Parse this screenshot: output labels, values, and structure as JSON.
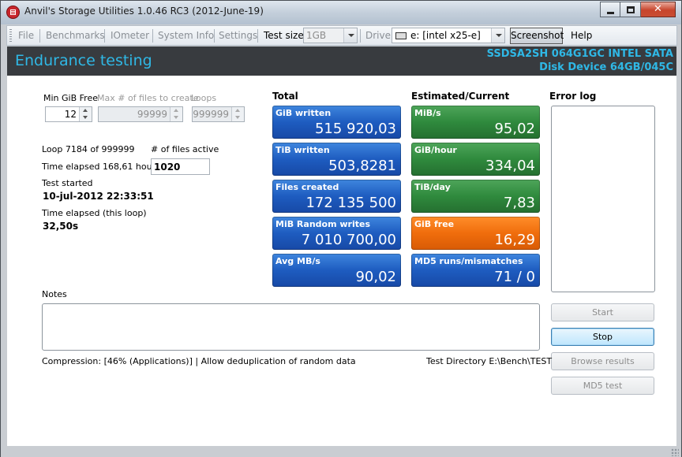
{
  "window": {
    "title": "Anvil's Storage Utilities 1.0.46 RC3 (2012-June-19)",
    "close_glyph": "✕"
  },
  "toolbar": {
    "file": "File",
    "benchmarks": "Benchmarks",
    "iometer": "IOmeter",
    "system_info": "System Info",
    "settings": "Settings",
    "test_size_label": "Test size",
    "test_size_value": "1GB",
    "drive_label": "Drive",
    "drive_value": "e: [intel x25-e]",
    "screenshot": "Screenshot",
    "help": "Help"
  },
  "header": {
    "title": "Endurance testing",
    "device_line1": "SSDSA2SH 064G1GC INTEL SATA",
    "device_line2": "Disk Device 64GB/045C"
  },
  "settings": {
    "min_gib_free_label": "Min GiB Free",
    "min_gib_free_value": "12",
    "max_files_label": "Max # of files to create",
    "max_files_value": "99999",
    "loops_label": "Loops",
    "loops_value": "999999"
  },
  "progress": {
    "loop_text": "Loop 7184 of 999999",
    "files_active_label": "# of files active",
    "files_active_value": "1020",
    "time_elapsed_text": "Time elapsed 168,61 hours",
    "test_started_label": "Test started",
    "test_started_value": "10-jul-2012 22:33:51",
    "time_loop_label": "Time elapsed (this loop)",
    "time_loop_value": "32,50s"
  },
  "total": {
    "heading": "Total",
    "tiles": [
      {
        "label": "GiB written",
        "value": "515 920,03"
      },
      {
        "label": "TiB written",
        "value": "503,8281"
      },
      {
        "label": "Files created",
        "value": "172 135 500"
      },
      {
        "label": "MiB Random writes",
        "value": "7 010 700,00"
      },
      {
        "label": "Avg MB/s",
        "value": "90,02"
      }
    ]
  },
  "estimated": {
    "heading": "Estimated/Current",
    "tiles": [
      {
        "label": "MiB/s",
        "value": "95,02"
      },
      {
        "label": "GiB/hour",
        "value": "334,04"
      },
      {
        "label": "TiB/day",
        "value": "7,83"
      },
      {
        "label": "GiB free",
        "value": "16,29"
      },
      {
        "label": "MD5 runs/mismatches",
        "value": "71 / 0"
      }
    ]
  },
  "error_log": {
    "heading": "Error log"
  },
  "notes": {
    "label": "Notes"
  },
  "buttons": {
    "start": "Start",
    "stop": "Stop",
    "browse": "Browse results",
    "md5": "MD5 test"
  },
  "footer": {
    "compression": "Compression: [46% (Applications)] | Allow deduplication of random data",
    "test_directory": "Test Directory E:\\Bench\\TEST"
  },
  "colors": {
    "header_bg": "#383b3f",
    "header_text": "#2fb8e6",
    "tile_blue": "#1e5cc0",
    "tile_green": "#2f8a3d",
    "tile_orange": "#f06d0c"
  }
}
